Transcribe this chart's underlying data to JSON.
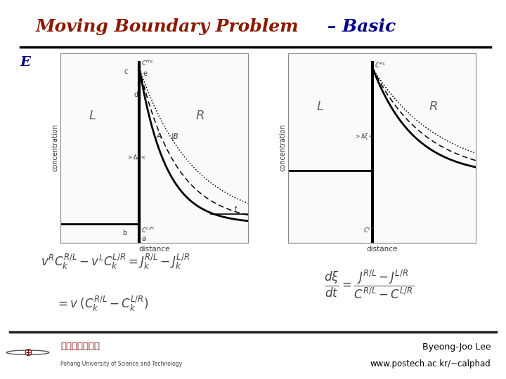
{
  "title_part1": "Moving Boundary Problem",
  "title_part2": " – Basic",
  "title_color1": "#8B1A00",
  "title_color2": "#00008B",
  "title_fontsize": 18,
  "bg_color": "#FFFFFF",
  "footer_text1": "Byeong-Joo Lee",
  "footer_text2": "www.postech.ac.kr/~calphad",
  "footer_color": "#000000",
  "header_underline_color": "#000000",
  "footer_underline_color": "#222222",
  "eq_color": "#444444",
  "label_color": "#333333",
  "LR_color": "#666666",
  "diagram_bg": "#FAFAFA"
}
